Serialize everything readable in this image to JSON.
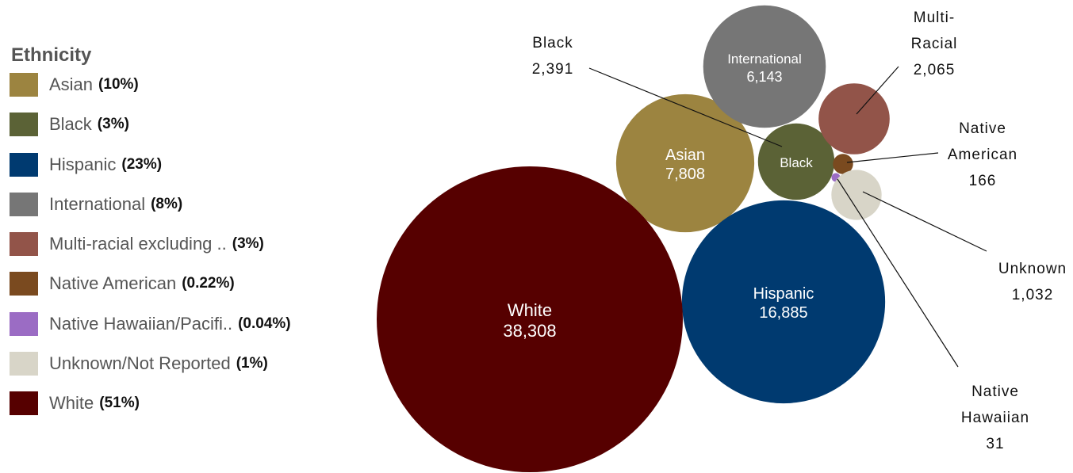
{
  "chart_data": {
    "type": "bubble",
    "title": "",
    "legend_title": "Ethnicity",
    "legend_placement": "left",
    "series": [
      {
        "name": "Asian",
        "legend_label": "Asian",
        "percent_label": "(10%)",
        "value": 7808,
        "value_label": "7,808",
        "color": "#9c8440"
      },
      {
        "name": "Black",
        "legend_label": "Black",
        "percent_label": "(3%)",
        "value": 2391,
        "value_label": "",
        "color": "#5b6236"
      },
      {
        "name": "Hispanic",
        "legend_label": "Hispanic",
        "percent_label": "(23%)",
        "value": 16885,
        "value_label": "16,885",
        "color": "#003a70"
      },
      {
        "name": "International",
        "legend_label": "International",
        "percent_label": "(8%)",
        "value": 6143,
        "value_label": "6,143",
        "color": "#767676"
      },
      {
        "name": "Multi-racial",
        "legend_label": "Multi-racial excluding ..",
        "percent_label": "(3%)",
        "value": 2065,
        "value_label": "",
        "color": "#925449"
      },
      {
        "name": "Native American",
        "legend_label": "Native American",
        "percent_label": "(0.22%)",
        "value": 166,
        "value_label": "",
        "color": "#7a4a1f"
      },
      {
        "name": "Native Hawaiian",
        "legend_label": "Native Hawaiian/Pacifi..",
        "percent_label": "(0.04%)",
        "value": 31,
        "value_label": "",
        "color": "#9b6cc4"
      },
      {
        "name": "Unknown",
        "legend_label": "Unknown/Not Reported",
        "percent_label": "(1%)",
        "value": 1032,
        "value_label": "",
        "color": "#d8d5c8"
      },
      {
        "name": "White",
        "legend_label": "White",
        "percent_label": "(51%)",
        "value": 38308,
        "value_label": "38,308",
        "color": "#560000"
      }
    ],
    "bubble_titles": {
      "Asian": "Asian",
      "Black": "Black",
      "Hispanic": "Hispanic",
      "International": "International",
      "White": "White"
    },
    "callouts": [
      {
        "series": "Black",
        "lines": [
          "Black",
          "2,391"
        ]
      },
      {
        "series": "Multi-racial",
        "lines": [
          "Multi-",
          "Racial",
          "2,065"
        ]
      },
      {
        "series": "Native American",
        "lines": [
          "Native",
          "American",
          "166"
        ]
      },
      {
        "series": "Unknown",
        "lines": [
          "Unknown",
          "1,032"
        ]
      },
      {
        "series": "Native Hawaiian",
        "lines": [
          "Native",
          "Hawaiian",
          "31"
        ]
      }
    ]
  }
}
